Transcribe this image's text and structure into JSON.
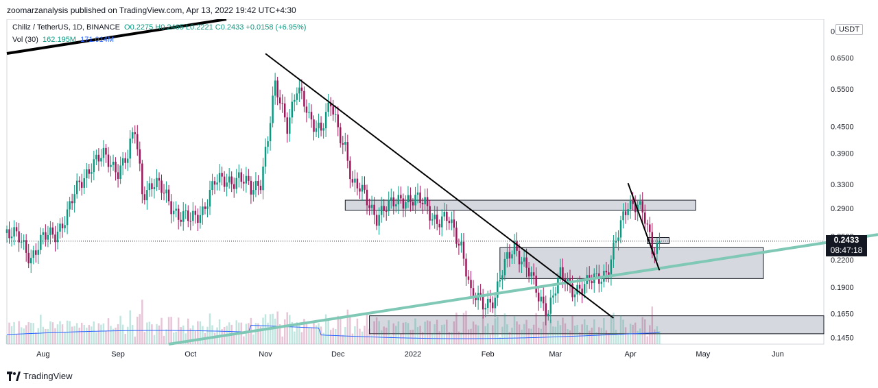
{
  "header": {
    "published": "zoomarzanalysis published on TradingView.com, Apr 13, 2022 19:42 UTC+4:30"
  },
  "legend": {
    "symbol": "Chiliz / TetherUS, 1D, BINANCE",
    "ohlc": "O0.2275  H0.2465  L0.2221  C0.2433  +0.0158 (+6.95%)",
    "volume_label": "Vol (30)",
    "volume_value": "162.195M",
    "volume_ma": "171.014M"
  },
  "currency": "USDT",
  "last_price": {
    "price": "0.2433",
    "countdown": "08:47:18"
  },
  "footer": {
    "brand": "TradingView"
  },
  "colors": {
    "up": "#089981",
    "down": "#a0145a",
    "trendline": "#000000",
    "support": "#7fc8b6",
    "zone": "#d1d4dc",
    "volume_ma": "#2962ff"
  },
  "chart_data": {
    "type": "candlestick",
    "title": "Chiliz / TetherUS, 1D, BINANCE",
    "xlabel": "",
    "ylabel": "",
    "y_scale": "log",
    "ylim": [
      0.14,
      0.8
    ],
    "y_ticks": [
      0.75,
      0.65,
      0.55,
      0.45,
      0.39,
      0.33,
      0.29,
      0.25,
      0.22,
      0.19,
      0.165,
      0.145
    ],
    "y_tick_labels": [
      "0.7500",
      "0.6500",
      "0.5500",
      "0.4500",
      "0.3900",
      "0.3300",
      "0.2900",
      "0.2500",
      "0.2200",
      "0.1900",
      "0.1650",
      "0.1450"
    ],
    "x_range": [
      "2021-07-17",
      "2022-06-20"
    ],
    "x_ticks": [
      "2021-08-01",
      "2021-09-01",
      "2021-10-01",
      "2021-11-01",
      "2021-12-01",
      "2022-01-01",
      "2022-02-01",
      "2022-03-01",
      "2022-04-01",
      "2022-05-01",
      "2022-06-01"
    ],
    "x_tick_labels": [
      "Aug",
      "Sep",
      "Oct",
      "Nov",
      "Dec",
      "2022",
      "Feb",
      "Mar",
      "Apr",
      "May",
      "Jun"
    ],
    "price_path": [
      [
        "2021-07-17",
        0.255
      ],
      [
        "2021-07-22",
        0.245
      ],
      [
        "2021-07-27",
        0.225
      ],
      [
        "2021-08-01",
        0.245
      ],
      [
        "2021-08-06",
        0.255
      ],
      [
        "2021-08-11",
        0.28
      ],
      [
        "2021-08-16",
        0.33
      ],
      [
        "2021-08-21",
        0.37
      ],
      [
        "2021-08-26",
        0.38
      ],
      [
        "2021-09-01",
        0.36
      ],
      [
        "2021-09-05",
        0.38
      ],
      [
        "2021-09-08",
        0.44
      ],
      [
        "2021-09-11",
        0.32
      ],
      [
        "2021-09-16",
        0.33
      ],
      [
        "2021-09-21",
        0.31
      ],
      [
        "2021-09-26",
        0.28
      ],
      [
        "2021-10-01",
        0.27
      ],
      [
        "2021-10-06",
        0.29
      ],
      [
        "2021-10-11",
        0.33
      ],
      [
        "2021-10-16",
        0.34
      ],
      [
        "2021-10-21",
        0.34
      ],
      [
        "2021-10-26",
        0.32
      ],
      [
        "2021-10-30",
        0.34
      ],
      [
        "2021-11-02",
        0.42
      ],
      [
        "2021-11-05",
        0.55
      ],
      [
        "2021-11-10",
        0.46
      ],
      [
        "2021-11-14",
        0.55
      ],
      [
        "2021-11-19",
        0.47
      ],
      [
        "2021-11-24",
        0.45
      ],
      [
        "2021-11-28",
        0.5
      ],
      [
        "2021-12-01",
        0.44
      ],
      [
        "2021-12-04",
        0.41
      ],
      [
        "2021-12-07",
        0.33
      ],
      [
        "2021-12-12",
        0.31
      ],
      [
        "2021-12-17",
        0.28
      ],
      [
        "2021-12-22",
        0.29
      ],
      [
        "2021-12-27",
        0.31
      ],
      [
        "2022-01-01",
        0.3
      ],
      [
        "2022-01-06",
        0.3
      ],
      [
        "2022-01-11",
        0.27
      ],
      [
        "2022-01-16",
        0.27
      ],
      [
        "2022-01-21",
        0.24
      ],
      [
        "2022-01-25",
        0.18
      ],
      [
        "2022-01-30",
        0.175
      ],
      [
        "2022-02-04",
        0.18
      ],
      [
        "2022-02-09",
        0.22
      ],
      [
        "2022-02-12",
        0.24
      ],
      [
        "2022-02-17",
        0.21
      ],
      [
        "2022-02-22",
        0.18
      ],
      [
        "2022-02-26",
        0.17
      ],
      [
        "2022-03-03",
        0.2
      ],
      [
        "2022-03-08",
        0.19
      ],
      [
        "2022-03-13",
        0.19
      ],
      [
        "2022-03-18",
        0.2
      ],
      [
        "2022-03-23",
        0.21
      ],
      [
        "2022-03-27",
        0.25
      ],
      [
        "2022-03-31",
        0.3
      ],
      [
        "2022-04-04",
        0.3
      ],
      [
        "2022-04-07",
        0.27
      ],
      [
        "2022-04-10",
        0.23
      ],
      [
        "2022-04-13",
        0.2433
      ]
    ],
    "last_price": 0.2433,
    "annotations": {
      "resistance_zones": [
        {
          "from": "2021-12-04",
          "to": "2022-04-28",
          "low": 0.287,
          "high": 0.303
        },
        {
          "from": "2022-02-06",
          "to": "2022-05-26",
          "low": 0.199,
          "high": 0.235
        },
        {
          "from": "2021-12-14",
          "to": "2022-06-20",
          "low": 0.148,
          "high": 0.163
        },
        {
          "from": "2022-04-08",
          "to": "2022-04-17",
          "low": 0.24,
          "high": 0.248
        }
      ],
      "trendlines": [
        {
          "from": [
            "2021-11-01",
            0.665
          ],
          "to": [
            "2022-03-25",
            0.161
          ]
        },
        {
          "from": [
            "2022-03-31",
            0.332
          ],
          "to": [
            "2022-04-13",
            0.208
          ]
        }
      ],
      "support_line": {
        "from": [
          "2021-09-22",
          0.14
        ],
        "to": [
          "2022-06-20",
          0.252
        ]
      }
    },
    "volume": {
      "label": "Vol (30)",
      "value": "162.195M",
      "ma": "171.014M"
    }
  }
}
